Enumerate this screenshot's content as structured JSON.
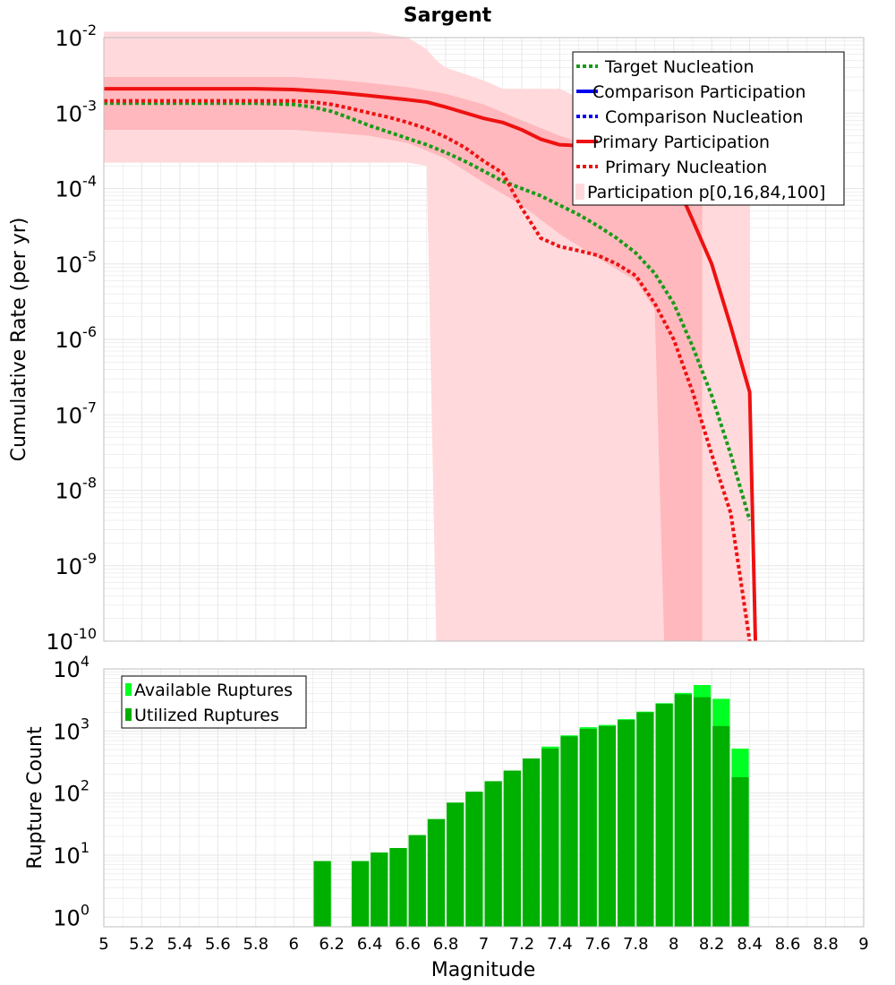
{
  "colors": {
    "target_nucleation": "#1a9a1a",
    "comparison": "#0000ee",
    "primary": "#ee1111",
    "band_outer": "#ffd9dc",
    "band_inner": "#ffb8bd",
    "available": "#00ff22",
    "utilized": "#00b000",
    "grid": "#e6e6e6"
  },
  "chart_data": [
    {
      "type": "line",
      "title": "Sargent",
      "xlabel": "",
      "ylabel": "Cumulative Rate (per yr)",
      "xlim": [
        5,
        9
      ],
      "ylim": [
        1e-10,
        0.01
      ],
      "yscale": "log",
      "y_ticks": [
        {
          "base": "10",
          "exp": "-2"
        },
        {
          "base": "10",
          "exp": "-3"
        },
        {
          "base": "10",
          "exp": "-4"
        },
        {
          "base": "10",
          "exp": "-5"
        },
        {
          "base": "10",
          "exp": "-6"
        },
        {
          "base": "10",
          "exp": "-7"
        },
        {
          "base": "10",
          "exp": "-8"
        },
        {
          "base": "10",
          "exp": "-9"
        },
        {
          "base": "10",
          "exp": "-10"
        }
      ],
      "grid": true,
      "legend_position": "top-right",
      "legend": [
        "Target Nucleation",
        "Comparison Participation",
        "Comparison Nucleation",
        "Primary Participation",
        "Primary Nucleation",
        "Participation p[0,16,84,100]"
      ],
      "series": [
        {
          "name": "Target Nucleation",
          "style": "dotted",
          "color_key": "target_nucleation",
          "x": [
            5.0,
            5.2,
            5.4,
            5.6,
            5.8,
            6.0,
            6.1,
            6.2,
            6.3,
            6.4,
            6.5,
            6.6,
            6.7,
            6.8,
            6.9,
            7.0,
            7.1,
            7.2,
            7.3,
            7.4,
            7.5,
            7.6,
            7.7,
            7.8,
            7.9,
            8.0,
            8.1,
            8.2,
            8.3,
            8.4
          ],
          "y": [
            0.00135,
            0.00135,
            0.00135,
            0.00135,
            0.00135,
            0.0013,
            0.0012,
            0.00105,
            0.00085,
            0.00068,
            0.00056,
            0.00046,
            0.00038,
            0.0003,
            0.00023,
            0.00017,
            0.000125,
            0.0001,
            8e-05,
            6e-05,
            4.5e-05,
            3.2e-05,
            2.2e-05,
            1.4e-05,
            7.5e-06,
            3e-06,
            8e-07,
            1.8e-07,
            3e-08,
            4e-09
          ]
        },
        {
          "name": "Primary Participation",
          "style": "solid",
          "color_key": "primary",
          "x": [
            5.0,
            5.4,
            5.8,
            6.0,
            6.2,
            6.4,
            6.6,
            6.7,
            6.8,
            7.0,
            7.1,
            7.2,
            7.3,
            7.4,
            7.5,
            7.6,
            7.7,
            7.8,
            7.9,
            8.0,
            8.1,
            8.2,
            8.3,
            8.4,
            8.43
          ],
          "y": [
            0.0021,
            0.0021,
            0.0021,
            0.00205,
            0.0019,
            0.0017,
            0.0015,
            0.0014,
            0.0012,
            0.00085,
            0.00075,
            0.0006,
            0.00045,
            0.00038,
            0.00037,
            0.00033,
            0.00032,
            0.00028,
            0.00025,
            0.00014,
            3.8e-05,
            1e-05,
            1.5e-06,
            2e-07,
            1e-10
          ]
        },
        {
          "name": "Primary Nucleation",
          "style": "dotted",
          "color_key": "primary",
          "x": [
            5.0,
            5.4,
            5.8,
            6.0,
            6.1,
            6.2,
            6.3,
            6.4,
            6.5,
            6.6,
            6.7,
            6.8,
            6.9,
            7.0,
            7.1,
            7.2,
            7.3,
            7.4,
            7.5,
            7.6,
            7.7,
            7.8,
            7.9,
            8.0,
            8.1,
            8.2,
            8.3,
            8.4
          ],
          "y": [
            0.00145,
            0.00145,
            0.00145,
            0.00145,
            0.0014,
            0.0013,
            0.00115,
            0.001,
            0.00088,
            0.00075,
            0.00062,
            0.00048,
            0.00035,
            0.00023,
            0.00016,
            5.5e-05,
            2.2e-05,
            1.7e-05,
            1.5e-05,
            1.3e-05,
            1e-05,
            7e-06,
            3e-06,
            1e-06,
            2e-07,
            3e-08,
            5e-09,
            1e-10
          ]
        }
      ],
      "bands": [
        {
          "name": "p[0,100]",
          "color_key": "band_outer",
          "x": [
            5.0,
            5.4,
            5.8,
            6.0,
            6.2,
            6.4,
            6.6,
            6.7,
            6.75,
            6.8,
            7.0,
            7.1,
            7.2,
            7.3,
            7.4,
            7.5,
            7.6,
            7.7,
            7.8,
            7.9,
            8.0,
            8.1,
            8.2,
            8.3,
            8.4
          ],
          "upper": [
            0.012,
            0.012,
            0.012,
            0.012,
            0.012,
            0.012,
            0.01,
            0.007,
            0.005,
            0.004,
            0.0027,
            0.0021,
            0.0021,
            0.0021,
            0.0021,
            0.0016,
            0.001,
            0.0008,
            0.0006,
            0.0005,
            0.0004,
            0.0003,
            0.00025,
            0.0002,
            0.00015
          ],
          "lower": [
            0.00022,
            0.00022,
            0.00022,
            0.00022,
            0.00022,
            0.00022,
            0.00022,
            0.0002,
            1e-10,
            1e-10,
            1e-10,
            1e-10,
            1e-10,
            1e-10,
            1e-10,
            1e-10,
            1e-10,
            1e-10,
            1e-10,
            1e-10,
            1e-10,
            1e-10,
            1e-10,
            1e-10,
            1e-10
          ]
        },
        {
          "name": "p[16,84]",
          "color_key": "band_inner",
          "x": [
            5.0,
            5.4,
            5.8,
            6.0,
            6.2,
            6.4,
            6.6,
            6.8,
            7.0,
            7.2,
            7.4,
            7.6,
            7.8,
            7.9,
            7.95,
            8.0,
            8.05,
            8.1,
            8.15
          ],
          "upper": [
            0.003,
            0.003,
            0.003,
            0.003,
            0.0028,
            0.0025,
            0.0022,
            0.0018,
            0.0013,
            0.0008,
            0.0005,
            0.00035,
            0.00028,
            0.00025,
            0.0002,
            0.00016,
            0.00013,
            0.0001,
            8e-05
          ],
          "lower": [
            0.0006,
            0.0006,
            0.0006,
            0.0006,
            0.00055,
            0.0005,
            0.0004,
            0.00025,
            0.00012,
            6e-05,
            2.5e-05,
            1.2e-05,
            6e-06,
            2.5e-06,
            1e-10,
            1e-10,
            1e-10,
            1e-10,
            1e-10
          ]
        }
      ]
    },
    {
      "type": "bar",
      "title": "",
      "xlabel": "Magnitude",
      "ylabel": "Rupture Count",
      "xlim": [
        5,
        9
      ],
      "ylim": [
        0.7,
        10000.0
      ],
      "yscale": "log",
      "x_ticks": [
        "5",
        "5.2",
        "5.4",
        "5.6",
        "5.8",
        "6",
        "6.2",
        "6.4",
        "6.6",
        "6.8",
        "7",
        "7.2",
        "7.4",
        "7.6",
        "7.8",
        "8",
        "8.2",
        "8.4",
        "8.6",
        "8.8",
        "9"
      ],
      "y_ticks": [
        {
          "base": "10",
          "exp": "4"
        },
        {
          "base": "10",
          "exp": "3"
        },
        {
          "base": "10",
          "exp": "2"
        },
        {
          "base": "10",
          "exp": "1"
        },
        {
          "base": "10",
          "exp": "0"
        }
      ],
      "grid": true,
      "legend_position": "top-left",
      "legend": [
        "Available Ruptures",
        "Utilized Ruptures"
      ],
      "bin_width": 0.1,
      "series": [
        {
          "name": "Available Ruptures",
          "color_key": "available",
          "x": [
            6.1,
            6.3,
            6.4,
            6.5,
            6.6,
            6.7,
            6.8,
            6.9,
            7.0,
            7.1,
            7.2,
            7.3,
            7.4,
            7.5,
            7.6,
            7.7,
            7.8,
            7.9,
            8.0,
            8.1,
            8.2,
            8.3
          ],
          "values": [
            8,
            8,
            11,
            13,
            21,
            38,
            70,
            105,
            155,
            230,
            360,
            560,
            850,
            1150,
            1250,
            1550,
            2050,
            2800,
            4100,
            5500,
            3300,
            520
          ]
        },
        {
          "name": "Utilized Ruptures",
          "color_key": "utilized",
          "x": [
            6.1,
            6.3,
            6.4,
            6.5,
            6.6,
            6.7,
            6.8,
            6.9,
            7.0,
            7.1,
            7.2,
            7.3,
            7.4,
            7.5,
            7.6,
            7.7,
            7.8,
            7.9,
            8.0,
            8.1,
            8.2,
            8.3
          ],
          "values": [
            8,
            8,
            11,
            13,
            21,
            38,
            70,
            105,
            155,
            230,
            360,
            520,
            820,
            1080,
            1200,
            1500,
            2000,
            2750,
            3900,
            3500,
            1200,
            180
          ]
        }
      ]
    }
  ]
}
